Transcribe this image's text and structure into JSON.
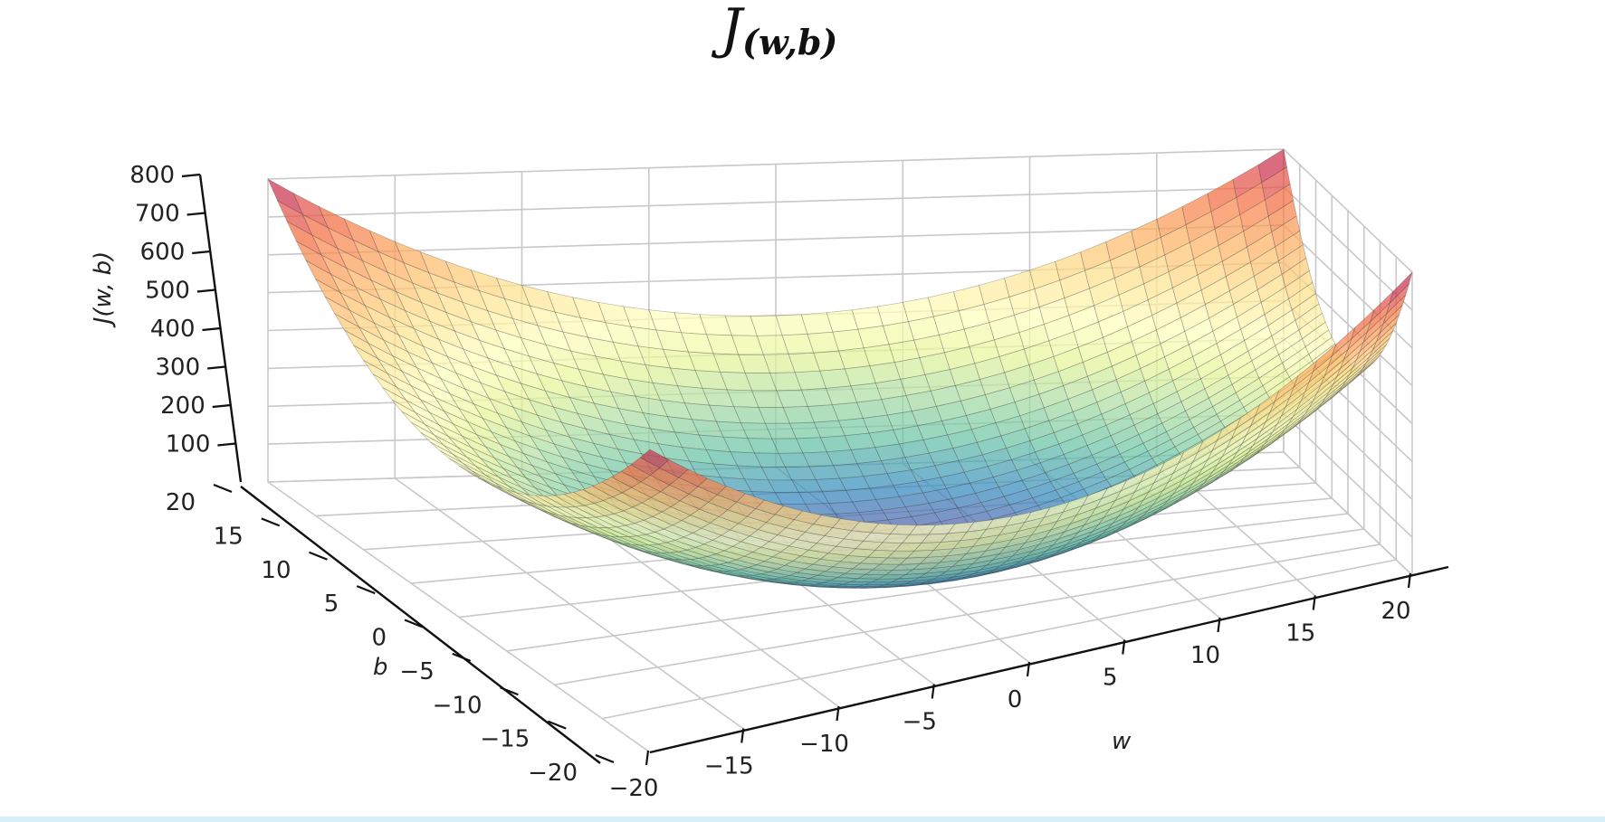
{
  "chart_data": {
    "type": "surface3d",
    "title": {
      "main": "J",
      "sub": "(w,b)"
    },
    "xlabel": "w",
    "ylabel": "b",
    "zlabel": "J(w, b)",
    "x_ticks": [
      -20,
      -15,
      -10,
      -5,
      0,
      5,
      10,
      15,
      20
    ],
    "y_ticks": [
      -20,
      -15,
      -10,
      -5,
      0,
      5,
      10,
      15,
      20
    ],
    "z_ticks": [
      100,
      200,
      300,
      400,
      500,
      600,
      700,
      800
    ],
    "x_tick_labels": [
      "−20",
      "−15",
      "−10",
      "−5",
      "0",
      "5",
      "10",
      "15",
      "20"
    ],
    "y_tick_labels": [
      "−20",
      "−15",
      "−10",
      "−5",
      "0",
      "5",
      "10",
      "15",
      "20"
    ],
    "z_tick_labels": [
      "100",
      "200",
      "300",
      "400",
      "500",
      "600",
      "700",
      "800"
    ],
    "xlim": [
      -20,
      20
    ],
    "ylim": [
      -20,
      20
    ],
    "zlim": [
      0,
      800
    ],
    "surface": {
      "function": "J(w, b) = w^2 + b^2",
      "corner_values": [
        {
          "w": -20,
          "b": -20,
          "J": 800
        },
        {
          "w": 20,
          "b": -20,
          "J": 800
        },
        {
          "w": 20,
          "b": 20,
          "J": 800
        },
        {
          "w": -20,
          "b": 20,
          "J": 800
        }
      ],
      "minimum": {
        "w": 0,
        "b": 0,
        "J": 0
      }
    },
    "colormap": "Spectral_r",
    "grid": true
  }
}
